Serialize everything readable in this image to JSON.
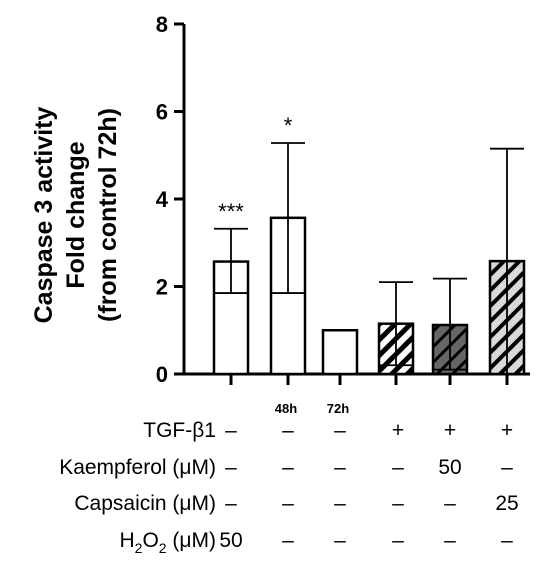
{
  "chart_data": {
    "type": "bar",
    "ylabel_lines": [
      "Caspase 3 activity",
      "Fold change",
      "(from control 72h)"
    ],
    "ylim": [
      0,
      8
    ],
    "yticks": [
      0,
      2,
      4,
      6,
      8
    ],
    "category_labels": [
      "",
      "48h",
      "72h",
      "",
      "",
      ""
    ],
    "values": [
      2.57,
      3.57,
      1.0,
      1.15,
      1.12,
      2.58
    ],
    "error_upper": [
      3.32,
      5.28,
      1.0,
      2.1,
      2.18,
      5.15
    ],
    "error_lower": [
      1.85,
      1.85,
      1.0,
      0.2,
      0.1,
      0.0
    ],
    "significance": [
      "***",
      "*",
      "",
      "",
      "",
      ""
    ],
    "fills": [
      "white",
      "white",
      "white",
      "hatch-black",
      "hatch-dark",
      "hatch-light"
    ],
    "colors": {
      "dark_fill": "#666666",
      "light_fill": "#d9d9d9",
      "axis": "#000000"
    }
  },
  "treatment_table": {
    "rows": [
      {
        "label": "TGF-β1",
        "cells": [
          "–",
          "–",
          "–",
          "+",
          "+",
          "+"
        ]
      },
      {
        "label": "Kaempferol (μM)",
        "cells": [
          "–",
          "–",
          "–",
          "–",
          "50",
          "–"
        ]
      },
      {
        "label": "Capsaicin (μM)",
        "cells": [
          "–",
          "–",
          "–",
          "–",
          "–",
          "25"
        ]
      },
      {
        "label_main": "H",
        "label_sub": "2",
        "label_mid": "O",
        "label_sub2": "2",
        "label_tail": " (μM)",
        "cells": [
          "50",
          "–",
          "–",
          "–",
          "–",
          "–"
        ]
      }
    ]
  }
}
